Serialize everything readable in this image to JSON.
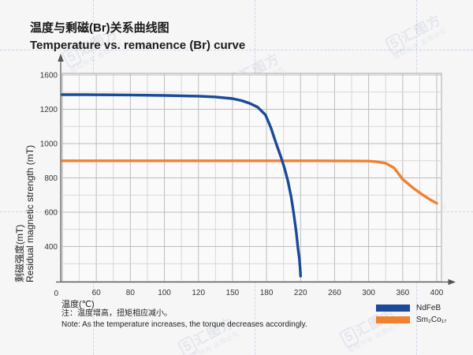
{
  "title": {
    "zh": "温度与剩磁(Br)关系曲线图",
    "en": "Temperature vs. remanence (Br) curve"
  },
  "watermark": {
    "badge": "5",
    "logo": "汇图方",
    "subtext": "版权所有 盗图必究"
  },
  "chart_data": {
    "type": "line",
    "title": "温度与剩磁(Br)关系曲线图 / Temperature vs. remanence (Br) curve",
    "xlabel": "温度(℃)",
    "ylabel_zh": "剩磁强度(mT)",
    "ylabel_en": "Residual magnetic strength (mT)",
    "origin_label": "0",
    "x_ticks": [
      0,
      60,
      80,
      100,
      120,
      150,
      180,
      220,
      260,
      300,
      360,
      400
    ],
    "y_ticks": [
      0,
      400,
      600,
      800,
      1000,
      1200,
      1600
    ],
    "grid": true,
    "legend_position": "bottom-right",
    "axis_note": "tick labels are equally spaced (non-linear axis as drawn)",
    "series": [
      {
        "name": "NdFeB",
        "color": "#1a4a99",
        "points": [
          [
            0,
            1370
          ],
          [
            40,
            1370
          ],
          [
            80,
            1366
          ],
          [
            100,
            1361
          ],
          [
            120,
            1353
          ],
          [
            135,
            1343
          ],
          [
            150,
            1324
          ],
          [
            158,
            1301
          ],
          [
            165,
            1270
          ],
          [
            172,
            1226
          ],
          [
            179,
            1168
          ],
          [
            185,
            1094
          ],
          [
            191,
            1004
          ],
          [
            197,
            922
          ],
          [
            201,
            858
          ],
          [
            205,
            784
          ],
          [
            209,
            688
          ],
          [
            212,
            592
          ],
          [
            215,
            480
          ],
          [
            217,
            378
          ],
          [
            218.5,
            262
          ],
          [
            219.5,
            148
          ],
          [
            220,
            55
          ]
        ]
      },
      {
        "name": "Sm₂Co₁₇",
        "color": "#ef8130",
        "points": [
          [
            0,
            900
          ],
          [
            60,
            900
          ],
          [
            120,
            900
          ],
          [
            180,
            900
          ],
          [
            240,
            900
          ],
          [
            300,
            898
          ],
          [
            315,
            894
          ],
          [
            330,
            886
          ],
          [
            345,
            858
          ],
          [
            360,
            792
          ],
          [
            372,
            742
          ],
          [
            382,
            706
          ],
          [
            392,
            674
          ],
          [
            400,
            652
          ]
        ]
      }
    ]
  },
  "note": {
    "zh": "注：温度增高，扭矩相应减小。",
    "en": "Note: As the temperature increases, the torque decreases accordingly."
  }
}
